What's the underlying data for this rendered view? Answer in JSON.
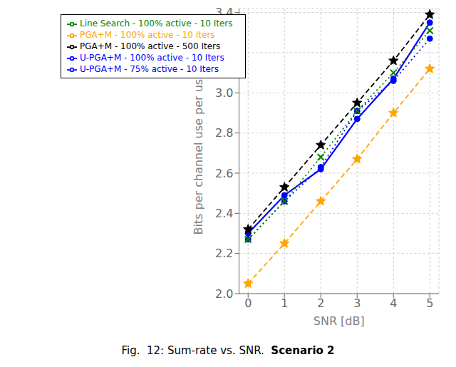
{
  "chart_data": {
    "type": "line",
    "xlabel": "SNR [dB]",
    "ylabel": "Bits per channel use per user",
    "annotations": [
      "Fig.  12: Sum-rate vs. SNR.  ",
      "Scenario 2"
    ],
    "x": [
      0,
      1,
      2,
      3,
      4,
      5
    ],
    "xlim": [
      -0.25,
      5.25
    ],
    "xticks": [
      0,
      1,
      2,
      3,
      4,
      5
    ],
    "ylim": [
      2.0,
      3.42
    ],
    "yticks": [
      {
        "value": 2.0,
        "label": "2.0"
      },
      2.2,
      2.4,
      2.6,
      2.8,
      {
        "value": 3.0,
        "label": "3.0"
      },
      3.2,
      3.4
    ],
    "grid": true,
    "legend": "upper left",
    "series": [
      {
        "name": "U-PGA+M - 100% active - 10 Iters",
        "color": "#0000ff",
        "line_style": "solid",
        "marker": "circle",
        "values": [
          2.3,
          2.49,
          2.62,
          2.87,
          3.07,
          3.35
        ]
      },
      {
        "name": "U-PGA+M - 75% active - 10 Iters",
        "color": "#0000ff",
        "line_style": "dotted",
        "marker": "circle",
        "values": [
          2.27,
          2.46,
          2.63,
          2.91,
          3.06,
          3.27
        ]
      },
      {
        "name": "PGA+M - 100% active - 10 Iters",
        "color": "#ffa500",
        "line_style": "dashed",
        "marker": "star",
        "values": [
          2.05,
          2.25,
          2.46,
          2.67,
          2.9,
          3.12
        ]
      },
      {
        "name": "Line Search - 100% active - 10 Iters",
        "color": "#008000",
        "line_style": "dotted",
        "marker": "x",
        "values": [
          2.27,
          2.46,
          2.68,
          2.91,
          3.1,
          3.31
        ]
      },
      {
        "name": "PGA+M - 100% active - 500 Iters",
        "color": "#000000",
        "line_style": "dashed",
        "marker": "star",
        "values": [
          2.32,
          2.53,
          2.74,
          2.95,
          3.16,
          3.39
        ]
      }
    ]
  }
}
